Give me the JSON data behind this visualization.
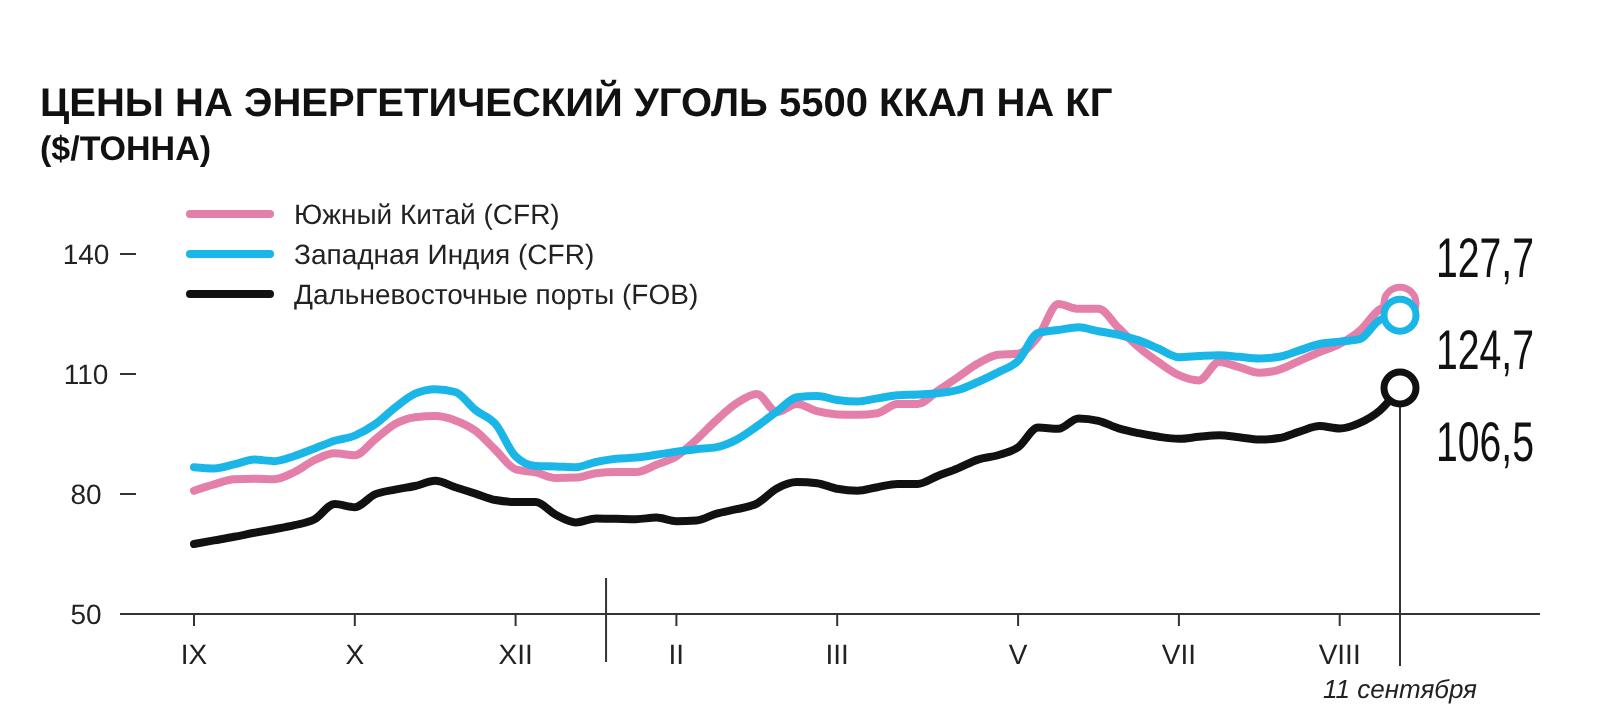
{
  "chart_data": {
    "type": "line",
    "title": "ЦЕНЫ НА ЭНЕРГЕТИЧЕСКИЙ УГОЛЬ 5500 ККАЛ НА КГ",
    "subtitle": "($/ТОННА)",
    "categories": [
      "IX",
      null,
      null,
      null,
      null,
      null,
      null,
      null,
      "X",
      null,
      null,
      null,
      null,
      null,
      null,
      null,
      "XII",
      null,
      null,
      null,
      null,
      null,
      null,
      null,
      "II",
      null,
      null,
      null,
      null,
      null,
      null,
      null,
      "III",
      null,
      null,
      null,
      null,
      null,
      null,
      null,
      null,
      "V",
      null,
      null,
      null,
      null,
      null,
      null,
      null,
      "VII",
      null,
      null,
      null,
      null,
      null,
      null,
      null,
      "VIII",
      null,
      null,
      "11 сентября"
    ],
    "ylim": [
      50,
      140
    ],
    "yticks": [
      50,
      80,
      110,
      140
    ],
    "legend": "top left",
    "grid": false,
    "marker": "none",
    "line_style": "solid",
    "series": [
      {
        "name": "Южный Китай (CFR)",
        "color": "#e47fa9",
        "values": [
          80.8,
          82.4,
          83.7,
          83.8,
          83.7,
          85.5,
          88.5,
          90.2,
          89.7,
          93.6,
          97.5,
          99.2,
          99.5,
          98.4,
          95.8,
          91,
          86.2,
          85.4,
          84,
          84.1,
          85.2,
          85.5,
          85.5,
          87.3,
          89.4,
          93.6,
          98.5,
          102.7,
          105,
          100.5,
          102.5,
          100.7,
          99.9,
          99.8,
          100.2,
          102.5,
          102.5,
          105.8,
          109.2,
          112.6,
          114.8,
          115.1,
          119.4,
          127.5,
          126.3,
          126.3,
          121.5,
          116.7,
          112.9,
          109.7,
          108.4,
          113,
          111.7,
          110.3,
          111.1,
          113.3,
          115.5,
          117.5,
          120.8,
          126.2,
          127.7
        ],
        "value_labels": [
          null,
          null,
          null,
          null,
          null,
          null,
          null,
          null,
          null,
          null,
          null,
          null,
          null,
          null,
          null,
          null,
          null,
          null,
          null,
          null,
          null,
          null,
          null,
          null,
          null,
          null,
          null,
          null,
          null,
          null,
          null,
          null,
          null,
          null,
          null,
          null,
          null,
          null,
          null,
          null,
          null,
          null,
          null,
          null,
          null,
          null,
          null,
          null,
          null,
          null,
          null,
          null,
          null,
          null,
          null,
          null,
          null,
          null,
          null,
          null,
          "127,7"
        ]
      },
      {
        "name": "Западная Индия (CFR)",
        "color": "#1bb6e8",
        "values": [
          86.7,
          86.4,
          87.4,
          88.6,
          88.2,
          89.5,
          91.4,
          93.3,
          94.6,
          97.4,
          101.6,
          105.1,
          106.2,
          105.5,
          101,
          97.5,
          89.4,
          87,
          86.9,
          86.7,
          88,
          88.8,
          89.1,
          89.8,
          90.6,
          91.2,
          91.7,
          93.6,
          96.9,
          100.6,
          104.2,
          104.5,
          103.5,
          103.1,
          103.9,
          104.7,
          104.9,
          105.2,
          106,
          108,
          110.4,
          113.3,
          120.3,
          121,
          121.7,
          120.7,
          119.8,
          118.4,
          116.3,
          114.2,
          114.5,
          114.7,
          114.3,
          113.9,
          114.3,
          115.9,
          117.5,
          118.1,
          118.7,
          123.5,
          124.7
        ],
        "value_labels": [
          null,
          null,
          null,
          null,
          null,
          null,
          null,
          null,
          null,
          null,
          null,
          null,
          null,
          null,
          null,
          null,
          null,
          null,
          null,
          null,
          null,
          null,
          null,
          null,
          null,
          null,
          null,
          null,
          null,
          null,
          null,
          null,
          null,
          null,
          null,
          null,
          null,
          null,
          null,
          null,
          null,
          null,
          null,
          null,
          null,
          null,
          null,
          null,
          null,
          null,
          null,
          null,
          null,
          null,
          null,
          null,
          null,
          null,
          null,
          null,
          "124,7"
        ]
      },
      {
        "name": "Дальневосточные порты (FOB)",
        "color": "#111111",
        "values": [
          67.5,
          68.4,
          69.3,
          70.3,
          71.2,
          72.2,
          73.7,
          77.5,
          76.7,
          79.9,
          81.1,
          82,
          83.3,
          81.7,
          80.1,
          78.5,
          78,
          78,
          74.8,
          72.9,
          73.9,
          73.8,
          73.7,
          74.1,
          73.2,
          73.4,
          75.1,
          76.2,
          77.6,
          81.4,
          83,
          82.7,
          81.3,
          80.8,
          81.7,
          82.5,
          82.5,
          84.5,
          86.4,
          88.6,
          89.7,
          91.7,
          96.6,
          96.3,
          98.9,
          98.3,
          96.4,
          95.2,
          94.3,
          93.8,
          94.3,
          94.7,
          94.2,
          93.6,
          94,
          95.6,
          97,
          96.4,
          97.8,
          100.9,
          106.5
        ],
        "value_labels": [
          null,
          null,
          null,
          null,
          null,
          null,
          null,
          null,
          null,
          null,
          null,
          null,
          null,
          null,
          null,
          null,
          null,
          null,
          null,
          null,
          null,
          null,
          null,
          null,
          null,
          null,
          null,
          null,
          null,
          null,
          null,
          null,
          null,
          null,
          null,
          null,
          null,
          null,
          null,
          null,
          null,
          null,
          null,
          null,
          null,
          null,
          null,
          null,
          null,
          null,
          null,
          null,
          null,
          null,
          null,
          null,
          null,
          null,
          null,
          null,
          "106,5"
        ]
      }
    ]
  }
}
